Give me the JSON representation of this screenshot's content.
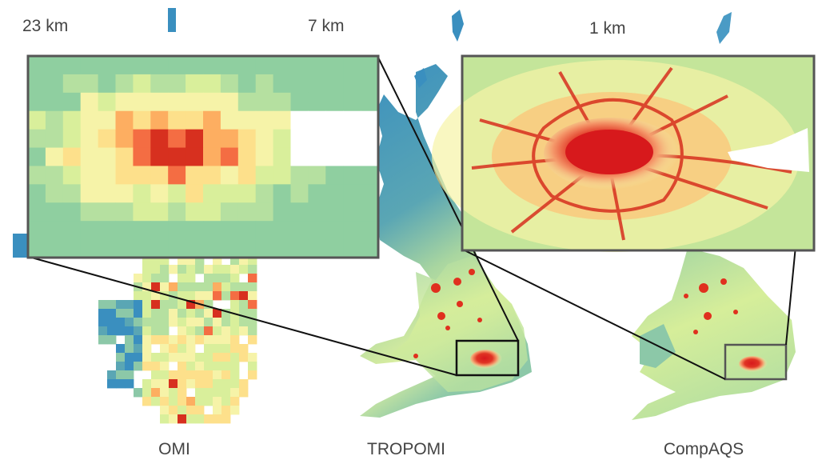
{
  "panels": [
    {
      "resolution": "23 km",
      "label": "OMI"
    },
    {
      "resolution": "7 km",
      "label": "TROPOMI"
    },
    {
      "resolution": "1 km",
      "label": "CompAQS"
    }
  ]
}
